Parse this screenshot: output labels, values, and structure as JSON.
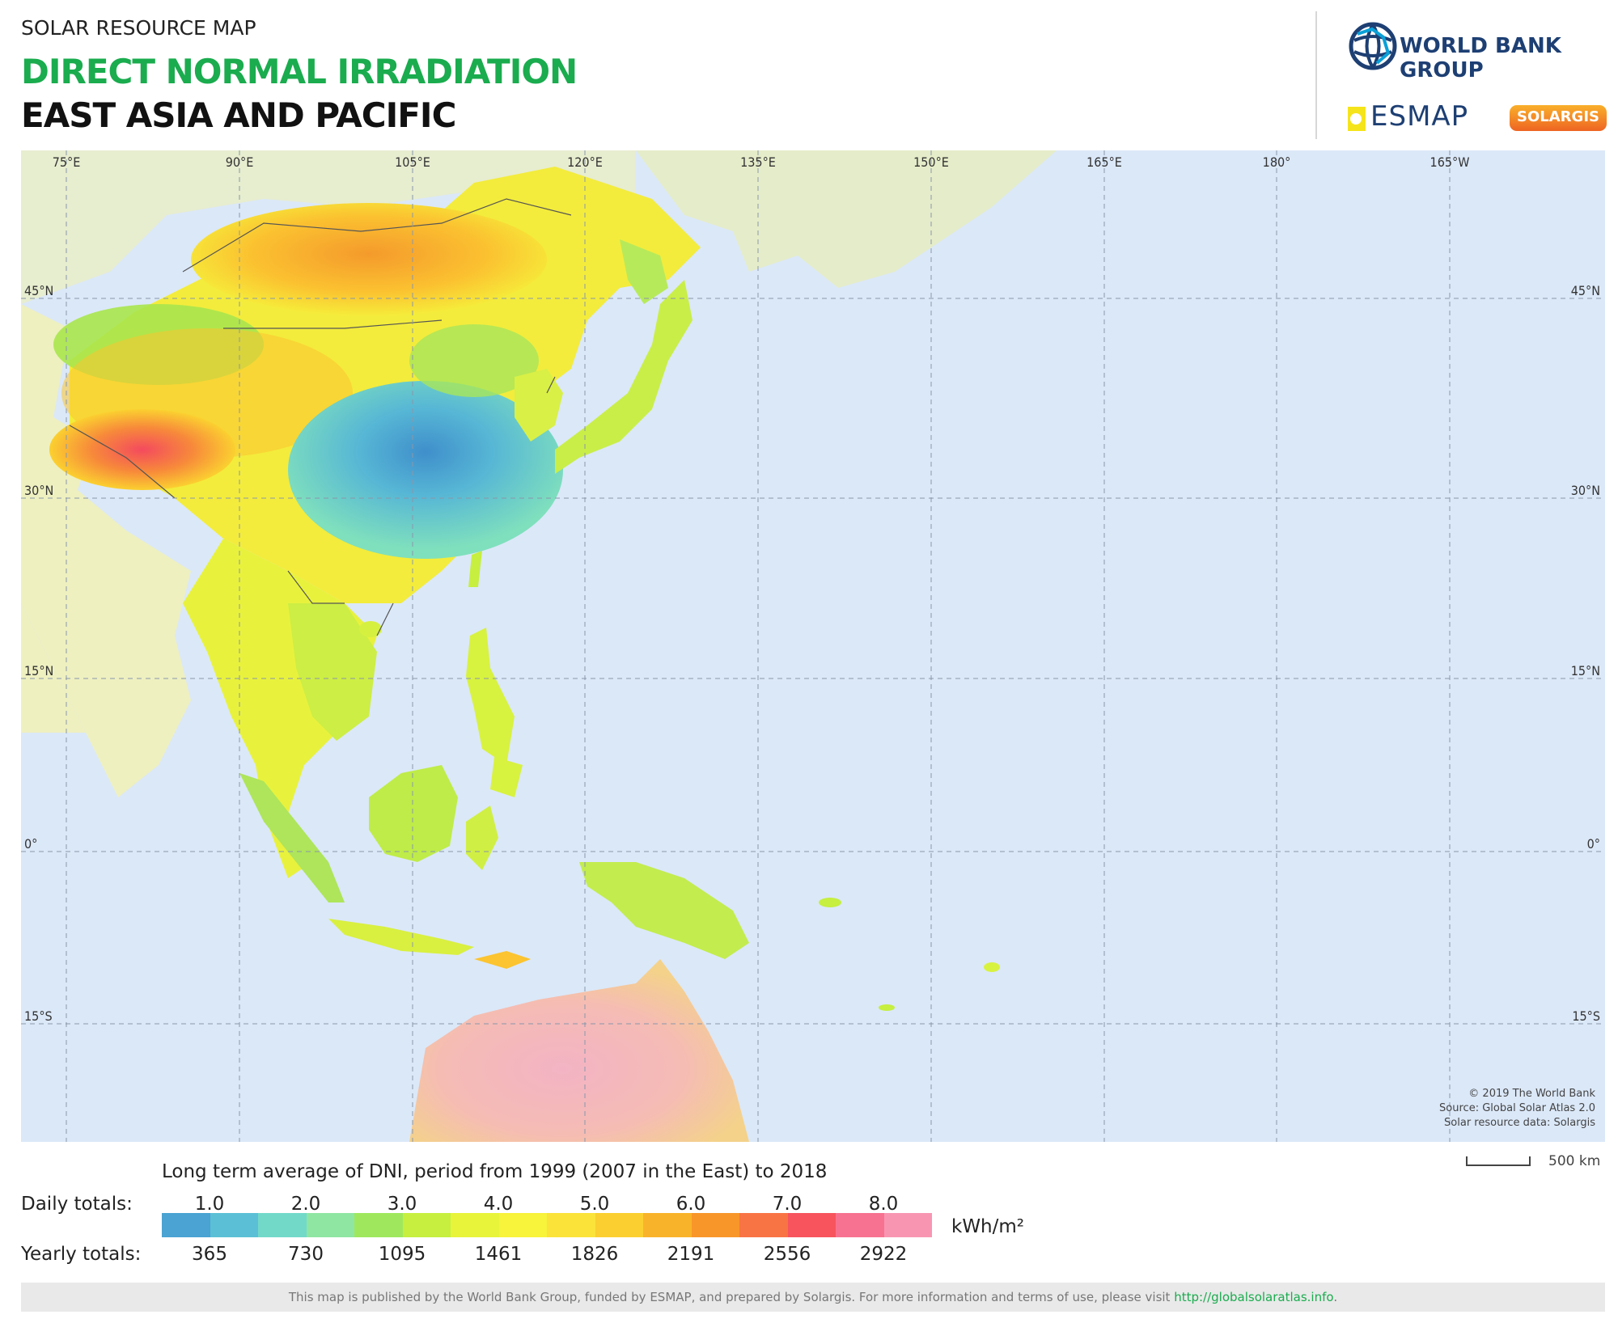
{
  "header": {
    "subtitle": "SOLAR RESOURCE MAP",
    "title": "DIRECT NORMAL IRRADIATION",
    "region": "EAST ASIA AND PACIFIC"
  },
  "logos": {
    "world_bank": "WORLD BANK GROUP",
    "esmap": "ESMAP",
    "solargis": "SOLARGIS"
  },
  "map": {
    "longitude_labels": [
      "75°E",
      "90°E",
      "105°E",
      "120°E",
      "135°E",
      "150°E",
      "165°E",
      "180°",
      "165°W"
    ],
    "latitude_labels_left": [
      "45°N",
      "30°N",
      "15°N",
      "0°",
      "15°S"
    ],
    "latitude_labels_right": [
      "45°N",
      "30°N",
      "15°N",
      "0°",
      "15°S"
    ],
    "ocean_color": "#dbe8f8",
    "credits": [
      "© 2019 The World Bank",
      "Source: Global Solar Atlas 2.0",
      "Solar resource data: Solargis"
    ],
    "scale_label": "500 km"
  },
  "legend": {
    "title": "Long term average of DNI, period from 1999 (2007 in the East) to 2018",
    "daily_label": "Daily totals:",
    "yearly_label": "Yearly totals:",
    "daily_ticks": [
      "1.0",
      "2.0",
      "3.0",
      "4.0",
      "5.0",
      "6.0",
      "7.0",
      "8.0"
    ],
    "yearly_ticks": [
      "365",
      "730",
      "1095",
      "1461",
      "1826",
      "2191",
      "2556",
      "2922"
    ],
    "unit": "kWh/m²",
    "colors": [
      "#4aa3d2",
      "#5bc0d6",
      "#72d9c9",
      "#8fe6a3",
      "#9fe85d",
      "#c6ef3f",
      "#e8f43a",
      "#f8f33b",
      "#fbe33a",
      "#fbcf30",
      "#f9b32a",
      "#f8962a",
      "#f97445",
      "#f7545e",
      "#f77290",
      "#f896b2"
    ]
  },
  "footer": {
    "text": "This map is published by the World Bank Group, funded by ESMAP, and prepared by Solargis. For more information and terms of use, please visit ",
    "link": "http://globalsolaratlas.info",
    "end": "."
  }
}
